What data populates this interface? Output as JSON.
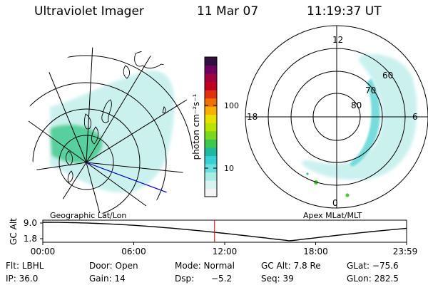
{
  "header": {
    "instrument": "Ultraviolet Imager",
    "date": "11 Mar 07",
    "time": "11:19:37 UT"
  },
  "left_panel": {
    "caption": "Geographic Lat/Lon"
  },
  "right_panel": {
    "caption": "Apex MLat/MLT",
    "mlt_labels": {
      "top": "12",
      "left": "18",
      "right": "6",
      "bottom": "0"
    },
    "lat_labels": [
      "60",
      "70",
      "80"
    ]
  },
  "colorbar": {
    "unit_label": "photon cm⁻²s⁻¹",
    "ticks": [
      "100",
      "10"
    ],
    "colors": [
      "#f4f4f4",
      "#d8f4f0",
      "#a8ece4",
      "#6ae0dc",
      "#38d0d4",
      "#22b8a0",
      "#3cc850",
      "#7ad820",
      "#b8e400",
      "#e8e000",
      "#f8b000",
      "#f07000",
      "#e03010",
      "#c00020",
      "#a00040",
      "#700060",
      "#301040"
    ]
  },
  "altitude_plot": {
    "ylabel": "GC Alt",
    "yticks": [
      "9.0",
      "1.8"
    ],
    "xticks": [
      "00:00",
      "06:00",
      "12:00",
      "18:00",
      "23:59"
    ],
    "current_time_hours": 11.33
  },
  "footer": {
    "filter": "Flt: LBHL",
    "door": "Door: Open",
    "mode": "Mode: Normal",
    "gc_alt": "GC Alt: 7.8 Re",
    "glat": "GLat: −75.6",
    "ip": "IP: 36.0",
    "gain": "Gain: 14",
    "dsp_label": "Dsp:",
    "dsp_value": "−5.2",
    "seq": "Seq: 39",
    "glon": "GLon: 282.5"
  },
  "colors": {
    "aurora_faint": "#c8f0ee",
    "aurora_mid": "#6ad8d8",
    "aurora_bright": "#3cc88a",
    "aurora_peak": "#50c840",
    "time_marker": "#d00000",
    "track_line": "#0000cc"
  }
}
